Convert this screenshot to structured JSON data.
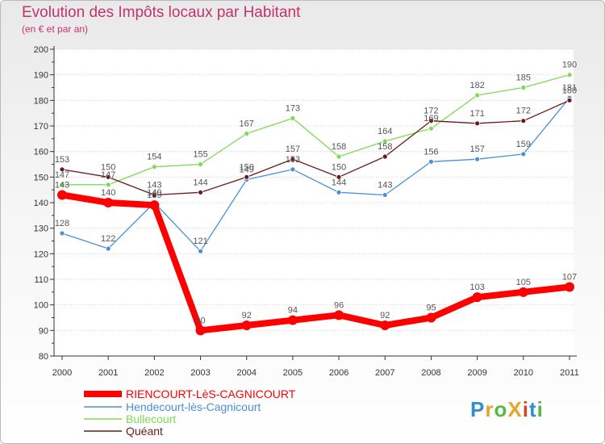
{
  "title": "Evolution des Impôts locaux par Habitant",
  "subtitle": "(en € et par an)",
  "logo_text": "ProXiti",
  "colors": {
    "background": "#f4f4f4",
    "title": "#c4326b",
    "axis": "#333333",
    "grid": "#cfcfcf"
  },
  "chart_data": {
    "type": "line",
    "title": "Evolution des Impôts locaux par Habitant",
    "subtitle": "(en € et par an)",
    "xlabel": "",
    "ylabel": "",
    "x": [
      "2000",
      "2001",
      "2002",
      "2003",
      "2004",
      "2005",
      "2006",
      "2007",
      "2008",
      "2009",
      "2010",
      "2011"
    ],
    "ylim": [
      80,
      200
    ],
    "yticks": [
      80,
      90,
      100,
      110,
      120,
      130,
      140,
      150,
      160,
      170,
      180,
      190,
      200
    ],
    "grid": "horizontal",
    "legend_position": "bottom-left",
    "series": [
      {
        "name": "RIENCOURT-LèS-CAGNICOURT",
        "color": "#ff0000",
        "values": [
          143,
          140,
          139,
          90,
          92,
          94,
          96,
          92,
          95,
          103,
          105,
          107
        ]
      },
      {
        "name": "Hendecourt-lès-Cagnicourt",
        "color": "#4a90d9",
        "values": [
          128,
          122,
          140,
          121,
          149,
          153,
          144,
          143,
          156,
          157,
          159,
          181
        ]
      },
      {
        "name": "Bullecourt",
        "color": "#7ed957",
        "values": [
          147,
          147,
          154,
          155,
          167,
          173,
          158,
          164,
          169,
          182,
          185,
          190
        ]
      },
      {
        "name": "Quéant",
        "color": "#6b1a1a",
        "values": [
          153,
          150,
          143,
          144,
          150,
          157,
          150,
          158,
          172,
          171,
          172,
          180
        ]
      }
    ]
  }
}
